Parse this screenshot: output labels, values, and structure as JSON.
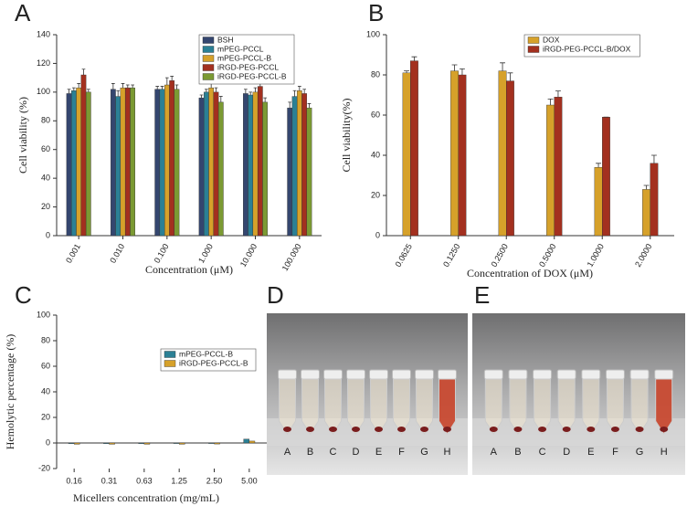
{
  "chart_data": [
    {
      "type": "bar",
      "label": "A",
      "ylabel": "Cell viability (%)",
      "xlabel": "Concentration (μM)",
      "categories": [
        "0.001",
        "0.010",
        "0.100",
        "1.000",
        "10.000",
        "100.000"
      ],
      "ylim": [
        0,
        140
      ],
      "yticks": [
        0,
        20,
        40,
        60,
        80,
        100,
        120,
        140
      ],
      "series": [
        {
          "name": "BSH",
          "color": "#34466f",
          "values": [
            99,
            102,
            102,
            96,
            99,
            89
          ],
          "errors": [
            3,
            4,
            2,
            2,
            3,
            4
          ]
        },
        {
          "name": "mPEG-PCCL",
          "color": "#2b8095",
          "values": [
            101,
            97,
            102,
            100,
            98,
            97
          ],
          "errors": [
            2,
            4,
            2,
            2,
            2,
            4
          ]
        },
        {
          "name": "mPEG-PCCL-B",
          "color": "#d6a12a",
          "values": [
            103,
            103,
            105,
            103,
            100,
            101
          ],
          "errors": [
            3,
            3,
            5,
            3,
            3,
            3
          ]
        },
        {
          "name": "iRGD-PEG-PCCL",
          "color": "#a3301f",
          "values": [
            112,
            103,
            108,
            100,
            104,
            99
          ],
          "errors": [
            4,
            2,
            3,
            3,
            2,
            3
          ]
        },
        {
          "name": "iRGD-PEG-PCCL-B",
          "color": "#7b9a33",
          "values": [
            100,
            103,
            102,
            93,
            93,
            89
          ],
          "errors": [
            2,
            2,
            3,
            4,
            3,
            3
          ]
        }
      ]
    },
    {
      "type": "bar",
      "label": "B",
      "ylabel": "Cell viability(%)",
      "xlabel": "Concentration of DOX (μM)",
      "categories": [
        "0.0625",
        "0.1250",
        "0.2500",
        "0.5000",
        "1.0000",
        "2.0000"
      ],
      "ylim": [
        0,
        100
      ],
      "yticks": [
        0,
        20,
        40,
        60,
        80,
        100
      ],
      "series": [
        {
          "name": "DOX",
          "color": "#d6a12a",
          "values": [
            81,
            82,
            82,
            65,
            34,
            23
          ],
          "errors": [
            1,
            3,
            4,
            3,
            2,
            2
          ]
        },
        {
          "name": "iRGD-PEG-PCCL-B/DOX",
          "color": "#a3301f",
          "values": [
            87,
            80,
            77,
            69,
            59,
            36
          ],
          "errors": [
            2,
            3,
            4,
            3,
            0,
            4
          ]
        }
      ]
    },
    {
      "type": "bar",
      "label": "C",
      "ylabel": "Hemolytic percentage (%)",
      "xlabel": "Micellers concentration (mg/mL)",
      "categories": [
        "0.16",
        "0.31",
        "0.63",
        "1.25",
        "2.50",
        "5.00"
      ],
      "ylim": [
        -20,
        100
      ],
      "yticks": [
        -20,
        0,
        20,
        40,
        60,
        80,
        100
      ],
      "series": [
        {
          "name": "mPEG-PCCL-B",
          "color": "#2b8095",
          "values": [
            -0.5,
            -0.5,
            -0.5,
            -0.3,
            -0.3,
            3
          ]
        },
        {
          "name": "iRGD-PEG-PCCL-B",
          "color": "#d6a12a",
          "values": [
            -1,
            -1,
            -1,
            -1,
            -0.8,
            1.5
          ]
        }
      ]
    }
  ],
  "photos": [
    {
      "label": "D",
      "tubes": [
        "A",
        "B",
        "C",
        "D",
        "E",
        "F",
        "G",
        "H"
      ]
    },
    {
      "label": "E",
      "tubes": [
        "A",
        "B",
        "C",
        "D",
        "E",
        "F",
        "G",
        "H"
      ]
    }
  ]
}
